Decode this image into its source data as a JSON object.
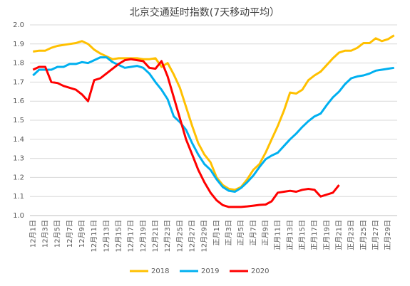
{
  "chart_data": {
    "type": "line",
    "title": "北京交通延时指数(7天移动平均）",
    "categories": [
      "12月1日",
      null,
      "12月3日",
      null,
      "12月5日",
      null,
      "12月7日",
      null,
      "12月9日",
      null,
      "12月11日",
      null,
      "12月13日",
      null,
      "12月15日",
      null,
      "12月17日",
      null,
      "12月19日",
      null,
      "12月21日",
      null,
      "12月23日",
      null,
      "12月25日",
      null,
      "12月27日",
      null,
      "12月29日",
      null,
      "正月1日",
      null,
      "正月3日",
      null,
      "正月5日",
      null,
      "正月7日",
      null,
      "正月9日",
      null,
      "正月11日",
      null,
      "正月13日",
      null,
      "正月15日",
      null,
      "正月17日",
      null,
      "正月19日",
      null,
      "正月21日",
      null,
      "正月23日",
      null,
      "正月25日",
      null,
      "正月27日",
      null,
      "正月29日",
      null
    ],
    "series": [
      {
        "name": "2018",
        "color": "#ffc000",
        "values": [
          1.86,
          1.865,
          1.865,
          1.88,
          1.89,
          1.895,
          1.9,
          1.905,
          1.915,
          1.9,
          1.87,
          1.85,
          1.835,
          1.82,
          1.825,
          1.825,
          1.825,
          1.825,
          1.82,
          1.82,
          1.825,
          1.78,
          1.8,
          1.74,
          1.67,
          1.57,
          1.47,
          1.38,
          1.32,
          1.28,
          1.2,
          1.16,
          1.14,
          1.135,
          1.15,
          1.19,
          1.24,
          1.27,
          1.33,
          1.4,
          1.47,
          1.55,
          1.645,
          1.64,
          1.66,
          1.71,
          1.735,
          1.755,
          1.79,
          1.825,
          1.855,
          1.865,
          1.865,
          1.88,
          1.905,
          1.905,
          1.93,
          1.915,
          1.925,
          1.945
        ]
      },
      {
        "name": "2019",
        "color": "#00b0f0",
        "values": [
          1.735,
          1.765,
          1.765,
          1.765,
          1.78,
          1.78,
          1.795,
          1.795,
          1.805,
          1.8,
          1.815,
          1.83,
          1.83,
          1.805,
          1.79,
          1.775,
          1.78,
          1.785,
          1.775,
          1.745,
          1.7,
          1.66,
          1.61,
          1.52,
          1.49,
          1.45,
          1.38,
          1.32,
          1.27,
          1.24,
          1.19,
          1.15,
          1.13,
          1.125,
          1.145,
          1.175,
          1.21,
          1.255,
          1.295,
          1.315,
          1.33,
          1.365,
          1.4,
          1.43,
          1.465,
          1.495,
          1.52,
          1.535,
          1.58,
          1.62,
          1.65,
          1.69,
          1.72,
          1.73,
          1.735,
          1.745,
          1.76,
          1.765,
          1.77,
          1.775
        ]
      },
      {
        "name": "2020",
        "color": "#ff0000",
        "values": [
          1.765,
          1.78,
          1.78,
          1.7,
          1.695,
          1.68,
          1.67,
          1.66,
          1.635,
          1.6,
          1.71,
          1.72,
          1.745,
          1.77,
          1.795,
          1.815,
          1.82,
          1.815,
          1.81,
          1.775,
          1.77,
          1.81,
          1.73,
          1.62,
          1.51,
          1.4,
          1.32,
          1.24,
          1.175,
          1.12,
          1.08,
          1.055,
          1.045,
          1.045,
          1.045,
          1.048,
          1.052,
          1.056,
          1.058,
          1.075,
          1.12,
          1.125,
          1.13,
          1.125,
          1.135,
          1.14,
          1.135,
          1.1,
          1.11,
          1.12,
          1.16,
          null,
          null,
          null,
          null,
          null,
          null,
          null,
          null,
          null
        ]
      }
    ],
    "ylim": [
      1.0,
      2.0
    ],
    "yticks": [
      {
        "value": 1.0,
        "label": "1.0"
      },
      1.1,
      1.2,
      1.3,
      1.4,
      1.5,
      1.6,
      1.7,
      1.8,
      1.9,
      {
        "value": 2.0,
        "label": "2.0"
      }
    ],
    "grid": true,
    "legend": "bottom"
  }
}
